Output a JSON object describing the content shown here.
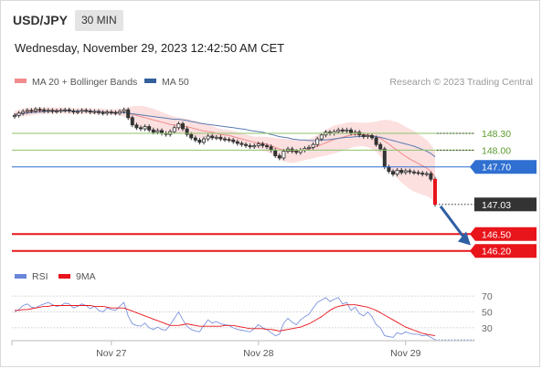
{
  "header": {
    "symbol": "USD/JPY",
    "interval": "30 MIN",
    "datetime": "Wednesday, November 29, 2023 12:42:50 AM CET"
  },
  "chart_data": [
    {
      "type": "candlestick",
      "legend": [
        {
          "label": "MA 20 + Bollinger Bands",
          "color": "#f28b8b"
        },
        {
          "label": "MA 50",
          "color": "#34609b"
        }
      ],
      "legend_position": "top-left",
      "credit": "Research © 2023 Trading Central",
      "y_range": [
        145.95,
        149.05
      ],
      "levels": [
        {
          "label": "148.30",
          "value": 148.3,
          "color": "#8ec36a",
          "text_color": "#5b9a2e",
          "kind": "line"
        },
        {
          "label": "148.00",
          "value": 148.0,
          "color": "#8ec36a",
          "text_color": "#5b9a2e",
          "kind": "line"
        },
        {
          "label": "147.70",
          "value": 147.7,
          "color": "#2e6fd1",
          "text_color": "#ffffff",
          "kind": "badge"
        },
        {
          "label": "147.03",
          "value": 147.03,
          "color": "#333333",
          "text_color": "#ffffff",
          "kind": "current"
        },
        {
          "label": "146.50",
          "value": 146.5,
          "color": "#e8151b",
          "text_color": "#ffffff",
          "kind": "badge"
        },
        {
          "label": "146.20",
          "value": 146.2,
          "color": "#e8151b",
          "text_color": "#ffffff",
          "kind": "badge"
        }
      ],
      "x_labels": [
        {
          "label": "Nov 27",
          "index": 23
        },
        {
          "label": "Nov 28",
          "index": 58
        },
        {
          "label": "Nov 29",
          "index": 93
        }
      ],
      "candles_close": [
        148.62,
        148.66,
        148.69,
        148.71,
        148.7,
        148.73,
        148.72,
        148.7,
        148.71,
        148.69,
        148.7,
        148.71,
        148.72,
        148.7,
        148.68,
        148.69,
        148.71,
        148.7,
        148.68,
        148.69,
        148.67,
        148.66,
        148.68,
        148.67,
        148.66,
        148.69,
        148.72,
        148.58,
        148.45,
        148.4,
        148.38,
        148.42,
        148.36,
        148.32,
        148.35,
        148.3,
        148.28,
        148.33,
        148.4,
        148.47,
        148.38,
        148.28,
        148.22,
        148.18,
        148.14,
        148.2,
        148.25,
        148.22,
        148.23,
        148.2,
        148.19,
        148.18,
        148.15,
        148.12,
        148.1,
        148.08,
        148.06,
        148.08,
        148.11,
        148.08,
        148.06,
        148.0,
        147.9,
        147.86,
        147.98,
        148.02,
        147.98,
        147.96,
        148.0,
        148.03,
        148.05,
        148.1,
        148.2,
        148.27,
        148.32,
        148.3,
        148.33,
        148.36,
        148.34,
        148.36,
        148.3,
        148.32,
        148.27,
        148.24,
        148.26,
        148.22,
        148.1,
        148.02,
        147.7,
        147.62,
        147.57,
        147.64,
        147.6,
        147.63,
        147.61,
        147.6,
        147.59,
        147.57,
        147.58,
        147.48,
        147.03
      ],
      "ma50_close": [
        148.63,
        148.64,
        148.65,
        148.66,
        148.67,
        148.68,
        148.68,
        148.69,
        148.69,
        148.7,
        148.7,
        148.7,
        148.7,
        148.7,
        148.7,
        148.7,
        148.7,
        148.7,
        148.69,
        148.69,
        148.69,
        148.68,
        148.68,
        148.67,
        148.67,
        148.67,
        148.67,
        148.66,
        148.65,
        148.64,
        148.63,
        148.62,
        148.61,
        148.6,
        148.59,
        148.58,
        148.57,
        148.56,
        148.55,
        148.55,
        148.54,
        148.53,
        148.51,
        148.5,
        148.48,
        148.47,
        148.46,
        148.45,
        148.44,
        148.43,
        148.42,
        148.41,
        148.4,
        148.39,
        148.38,
        148.37,
        148.35,
        148.34,
        148.33,
        148.32,
        148.3,
        148.28,
        148.26,
        148.24,
        148.23,
        148.22,
        148.2,
        148.19,
        148.18,
        148.18,
        148.17,
        148.17,
        148.17,
        148.18,
        148.18,
        148.19,
        148.2,
        148.21,
        148.22,
        148.23,
        148.23,
        148.24,
        148.24,
        148.25,
        148.25,
        148.25,
        148.24,
        148.23,
        148.21,
        148.19,
        148.17,
        148.15,
        148.13,
        148.11,
        148.09,
        148.07,
        148.04,
        148.01,
        147.98,
        147.94,
        147.88
      ],
      "ma20_close": [
        148.64,
        148.66,
        148.67,
        148.68,
        148.69,
        148.7,
        148.7,
        148.7,
        148.71,
        148.71,
        148.71,
        148.71,
        148.7,
        148.7,
        148.7,
        148.7,
        148.7,
        148.7,
        148.69,
        148.69,
        148.69,
        148.69,
        148.68,
        148.68,
        148.68,
        148.68,
        148.67,
        148.66,
        148.64,
        148.62,
        148.6,
        148.58,
        148.56,
        148.54,
        148.52,
        148.5,
        148.48,
        148.46,
        148.45,
        148.44,
        148.43,
        148.42,
        148.4,
        148.38,
        148.36,
        148.34,
        148.33,
        148.32,
        148.3,
        148.28,
        148.27,
        148.26,
        148.24,
        148.22,
        148.2,
        148.18,
        148.16,
        148.14,
        148.13,
        148.12,
        148.1,
        148.08,
        148.05,
        148.02,
        148.0,
        147.99,
        147.98,
        147.98,
        147.99,
        148.0,
        148.02,
        148.04,
        148.07,
        148.1,
        148.13,
        148.16,
        148.19,
        148.21,
        148.23,
        148.25,
        148.27,
        148.28,
        148.28,
        148.28,
        148.27,
        148.26,
        148.24,
        148.21,
        148.16,
        148.11,
        148.05,
        148.0,
        147.94,
        147.89,
        147.84,
        147.8,
        147.76,
        147.72,
        147.68,
        147.62,
        147.52
      ],
      "bb_halfwidth": [
        0.06,
        0.06,
        0.07,
        0.07,
        0.07,
        0.06,
        0.06,
        0.06,
        0.06,
        0.05,
        0.05,
        0.05,
        0.05,
        0.05,
        0.05,
        0.05,
        0.05,
        0.05,
        0.05,
        0.05,
        0.05,
        0.05,
        0.05,
        0.05,
        0.05,
        0.06,
        0.07,
        0.1,
        0.14,
        0.17,
        0.19,
        0.2,
        0.2,
        0.2,
        0.19,
        0.18,
        0.17,
        0.16,
        0.15,
        0.14,
        0.14,
        0.14,
        0.14,
        0.14,
        0.14,
        0.13,
        0.12,
        0.11,
        0.1,
        0.1,
        0.1,
        0.1,
        0.1,
        0.1,
        0.1,
        0.1,
        0.1,
        0.1,
        0.11,
        0.12,
        0.13,
        0.15,
        0.17,
        0.19,
        0.2,
        0.21,
        0.21,
        0.2,
        0.19,
        0.18,
        0.18,
        0.19,
        0.2,
        0.21,
        0.23,
        0.24,
        0.25,
        0.25,
        0.24,
        0.24,
        0.23,
        0.22,
        0.21,
        0.21,
        0.22,
        0.24,
        0.27,
        0.32,
        0.38,
        0.43,
        0.47,
        0.5,
        0.52,
        0.53,
        0.54,
        0.54,
        0.53,
        0.52,
        0.5,
        0.48,
        0.46
      ]
    },
    {
      "type": "line",
      "legend": [
        {
          "label": "RSI",
          "color": "#6b86d8"
        },
        {
          "label": "9MA",
          "color": "#e8151b"
        }
      ],
      "y_range": [
        15,
        77
      ],
      "y_ticks": [
        {
          "label": "70",
          "value": 70
        },
        {
          "label": "50",
          "value": 50
        },
        {
          "label": "30",
          "value": 30
        }
      ],
      "rsi": [
        50,
        53,
        58,
        60,
        56,
        55,
        58,
        60,
        62,
        59,
        57,
        58,
        61,
        60,
        55,
        57,
        60,
        58,
        54,
        57,
        52,
        50,
        55,
        53,
        52,
        57,
        62,
        45,
        35,
        33,
        32,
        36,
        30,
        28,
        31,
        28,
        27,
        34,
        42,
        50,
        40,
        32,
        28,
        26,
        25,
        33,
        40,
        36,
        38,
        35,
        34,
        33,
        30,
        28,
        27,
        26,
        25,
        29,
        34,
        30,
        28,
        24,
        20,
        22,
        36,
        42,
        37,
        34,
        40,
        44,
        47,
        55,
        62,
        65,
        68,
        63,
        66,
        68,
        60,
        62,
        52,
        56,
        48,
        45,
        50,
        44,
        34,
        30,
        20,
        19,
        18,
        24,
        22,
        25,
        23,
        22,
        22,
        20,
        21,
        18,
        15
      ],
      "ma9": [
        52,
        52,
        53,
        53,
        54,
        55,
        56,
        57,
        57,
        58,
        58,
        58,
        58,
        58,
        58,
        58,
        58,
        58,
        58,
        57,
        57,
        57,
        56,
        55,
        55,
        55,
        55,
        53,
        51,
        49,
        47,
        45,
        43,
        41,
        39,
        37,
        35,
        33,
        33,
        33,
        34,
        35,
        34,
        33,
        32,
        32,
        32,
        32,
        32,
        32,
        33,
        33,
        33,
        32,
        31,
        30,
        29,
        29,
        29,
        29,
        28,
        28,
        27,
        26,
        27,
        28,
        29,
        30,
        31,
        33,
        35,
        38,
        41,
        44,
        48,
        52,
        55,
        57,
        58,
        59,
        59,
        59,
        58,
        57,
        56,
        54,
        52,
        49,
        46,
        43,
        40,
        37,
        34,
        31,
        29,
        27,
        25,
        23,
        22,
        21,
        20
      ]
    }
  ]
}
